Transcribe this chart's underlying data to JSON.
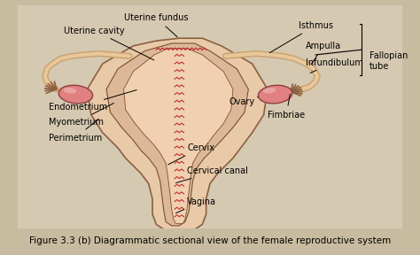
{
  "title": "Figure 3.3 (b) Diagrammatic sectional view of the female reproductive system",
  "bg_color": "#d4c9b0",
  "fig_bg": "#c8bca0",
  "uterus_fill": "#e8c8a8",
  "uterus_outline": "#8b6040",
  "ovary_fill": "#e08080",
  "endometrium_color": "#c05050",
  "fallopian_color": "#c8a078",
  "labels": {
    "uterine_fundus": "Uterine fundus",
    "uterine_cavity": "Uterine cavity",
    "isthmus": "Isthmus",
    "ampulla": "Ampulla",
    "fallopian_tube": "Fallopian\ntube",
    "infundibulum": "Infundibulum",
    "ovary": "Ovary",
    "fimbriae": "Fimbriae",
    "endometrium": "Endometrium",
    "myometrium": "Myometrium",
    "perimetrium": "Perimetrium",
    "cervix": "Cervix",
    "cervical_canal": "Cervical canal",
    "vagina": "Vagina"
  },
  "label_fontsize": 7,
  "title_fontsize": 7.5
}
